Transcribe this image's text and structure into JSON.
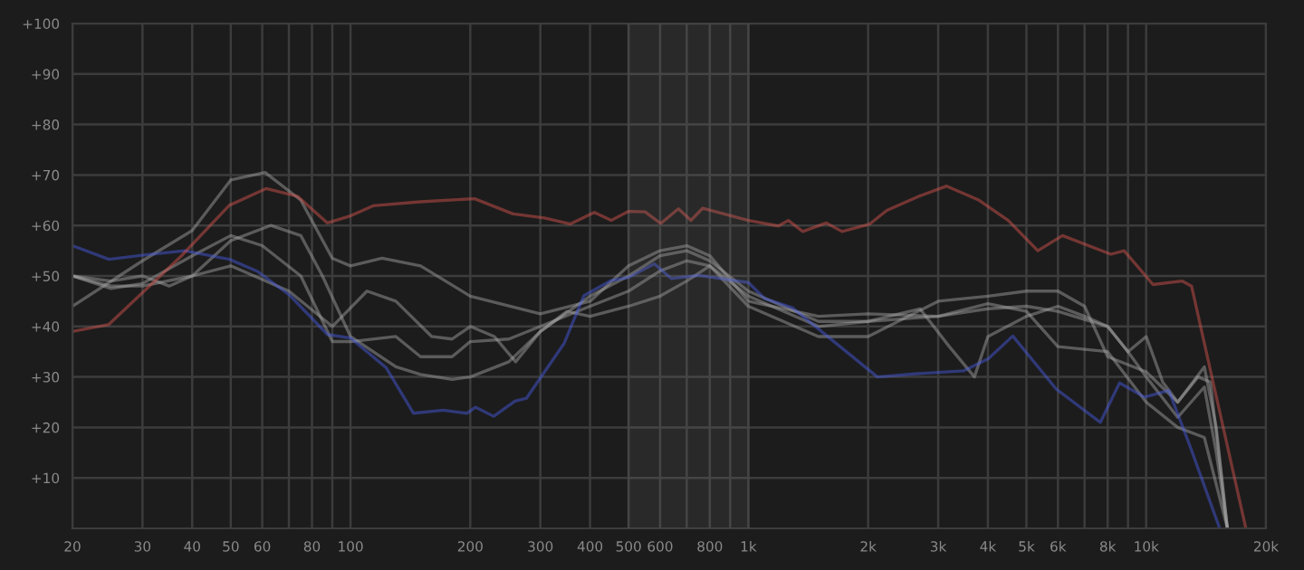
{
  "chart_data": {
    "type": "line",
    "log": "x",
    "grid": true,
    "legend": false,
    "xlim": [
      20,
      20000
    ],
    "ylim": [
      0,
      100
    ],
    "xticks": [
      20,
      30,
      40,
      50,
      60,
      {
        "value": 70,
        "label": null
      },
      80,
      {
        "value": 90,
        "label": null
      },
      100,
      200,
      300,
      400,
      500,
      600,
      {
        "value": 700,
        "label": null
      },
      800,
      {
        "value": 900,
        "label": null
      },
      {
        "value": 1000,
        "label": "1k"
      },
      {
        "value": 2000,
        "label": "2k"
      },
      {
        "value": 3000,
        "label": "3k"
      },
      {
        "value": 4000,
        "label": "4k"
      },
      {
        "value": 5000,
        "label": "5k"
      },
      {
        "value": 6000,
        "label": "6k"
      },
      {
        "value": 7000,
        "label": null
      },
      {
        "value": 8000,
        "label": "8k"
      },
      {
        "value": 9000,
        "label": null
      },
      {
        "value": 10000,
        "label": "10k"
      },
      {
        "value": 20000,
        "label": "20k"
      }
    ],
    "yticks": [
      {
        "value": 10,
        "label": "+10"
      },
      {
        "value": 20,
        "label": "+20"
      },
      {
        "value": 30,
        "label": "+30"
      },
      {
        "value": 40,
        "label": "+40"
      },
      {
        "value": 50,
        "label": "+50"
      },
      {
        "value": 60,
        "label": "+60"
      },
      {
        "value": 70,
        "label": "+70"
      },
      {
        "value": 80,
        "label": "+80"
      },
      {
        "value": 90,
        "label": "+90"
      },
      {
        "value": 100,
        "label": "+100"
      }
    ],
    "bands": [
      {
        "axis": "x",
        "from": 500,
        "to": 1000,
        "color": "#8a8a8a"
      }
    ],
    "series": [
      {
        "color": "#a8a8a8",
        "x": [
          20,
          30,
          40,
          50,
          61,
          75,
          90,
          100,
          120,
          150,
          200,
          300,
          400,
          500,
          600,
          700,
          800,
          1000,
          1500,
          2000,
          3000,
          4000,
          5000,
          6000,
          8000,
          9000,
          10000,
          12000,
          14000,
          15000,
          16000
        ],
        "values": [
          44,
          53,
          59,
          69,
          70.5,
          65,
          53.5,
          52,
          53.5,
          52,
          46,
          42.5,
          45,
          52,
          55,
          56,
          54,
          45,
          42,
          42.5,
          42,
          43.5,
          44,
          43,
          40,
          35,
          30,
          22,
          28,
          15,
          0
        ]
      },
      {
        "color": "#a8a8a8",
        "x": [
          20,
          25,
          30,
          40,
          50,
          63,
          75,
          85,
          100,
          130,
          150,
          180,
          200,
          250,
          300,
          400,
          500,
          600,
          700,
          800,
          1000,
          1500,
          2000,
          3000,
          4000,
          5000,
          6000,
          8000,
          10000,
          12000,
          14000,
          16000
        ],
        "values": [
          50,
          48,
          48,
          50,
          57,
          60,
          58,
          50,
          38,
          32,
          30.5,
          29.5,
          30,
          33,
          39,
          46,
          50,
          54,
          55,
          53,
          47,
          41,
          41,
          42,
          44.5,
          43,
          36,
          35,
          25,
          20,
          18,
          0
        ]
      },
      {
        "color": "#a8a8a8",
        "x": [
          20,
          25,
          30,
          40,
          50,
          60,
          75,
          90,
          100,
          130,
          150,
          180,
          200,
          250,
          300,
          400,
          500,
          600,
          700,
          800,
          1000,
          1500,
          2000,
          3000,
          4000,
          5000,
          6000,
          7000,
          8000,
          10000,
          12000,
          13500,
          14500,
          16000
        ],
        "values": [
          50,
          47.5,
          48.5,
          54,
          58,
          56,
          50,
          37,
          37,
          38,
          34,
          34,
          37,
          37.5,
          40,
          44,
          47,
          51,
          53,
          52,
          44,
          38,
          38,
          45,
          46,
          47,
          47,
          44,
          34,
          31,
          25,
          30,
          29,
          0
        ]
      },
      {
        "color": "#a8a8a8",
        "x": [
          20,
          25,
          30,
          35,
          40,
          50,
          70,
          90,
          110,
          130,
          160,
          180,
          200,
          230,
          260,
          300,
          350,
          400,
          500,
          600,
          700,
          800,
          1000,
          1500,
          2000,
          2700,
          3200,
          3700,
          4000,
          5000,
          6000,
          7000,
          8000,
          9000,
          10000,
          11000,
          12000,
          14000,
          15000,
          16000
        ],
        "values": [
          50,
          49,
          50,
          48,
          50,
          52,
          47,
          40,
          47,
          45,
          38,
          37.5,
          40,
          38,
          33,
          39,
          43,
          42,
          44,
          46,
          49,
          52,
          46,
          40,
          41,
          43.5,
          36,
          30,
          38,
          42,
          44,
          42,
          40,
          35,
          38,
          29,
          25,
          32,
          20,
          0
        ]
      },
      {
        "color": "#4a5ee8",
        "x": [
          20,
          24.7,
          30.6,
          38.3,
          49.6,
          58.4,
          70.5,
          87.5,
          100,
          123,
          144,
          171,
          196,
          206,
          229,
          259,
          277,
          344,
          386,
          452,
          500,
          580,
          640,
          750,
          1000,
          1100,
          1290,
          2110,
          2620,
          3470,
          4010,
          4620,
          5940,
          7670,
          8570,
          9900,
          11400,
          12900,
          15300
        ],
        "values": [
          56,
          53.3,
          54.2,
          55,
          53.3,
          50.9,
          46.1,
          38.4,
          37.7,
          31.8,
          22.8,
          23.4,
          22.8,
          24,
          22.2,
          25.2,
          25.8,
          36.6,
          46.1,
          49.1,
          49.7,
          52.4,
          49.5,
          50.1,
          48.7,
          45.5,
          43.7,
          30,
          30.6,
          31.2,
          33.6,
          38.1,
          27.6,
          21,
          28.8,
          26,
          27.3,
          16.2,
          0
        ]
      },
      {
        "color": "#e0574f",
        "x": [
          20,
          24.7,
          37.5,
          49.6,
          61.3,
          73.5,
          87.5,
          100,
          114,
          150,
          205,
          256,
          307,
          357,
          410,
          452,
          500,
          550,
          602,
          667,
          717,
          767,
          1000,
          1190,
          1260,
          1370,
          1570,
          1720,
          2020,
          2230,
          2690,
          3150,
          3800,
          4500,
          5340,
          6160,
          8150,
          8800,
          10400,
          12300,
          13000,
          17800
        ],
        "values": [
          39,
          40.4,
          53.9,
          64,
          67.3,
          65.8,
          60.5,
          61.9,
          63.9,
          64.7,
          65.3,
          62.3,
          61.5,
          60.3,
          62.6,
          61,
          62.8,
          62.7,
          60.4,
          63.3,
          61,
          63.4,
          61,
          59.9,
          61,
          58.8,
          60.5,
          58.8,
          60.3,
          63,
          65.8,
          67.8,
          65,
          61,
          55,
          58,
          54.3,
          55,
          48.3,
          49,
          48,
          0
        ]
      }
    ]
  }
}
